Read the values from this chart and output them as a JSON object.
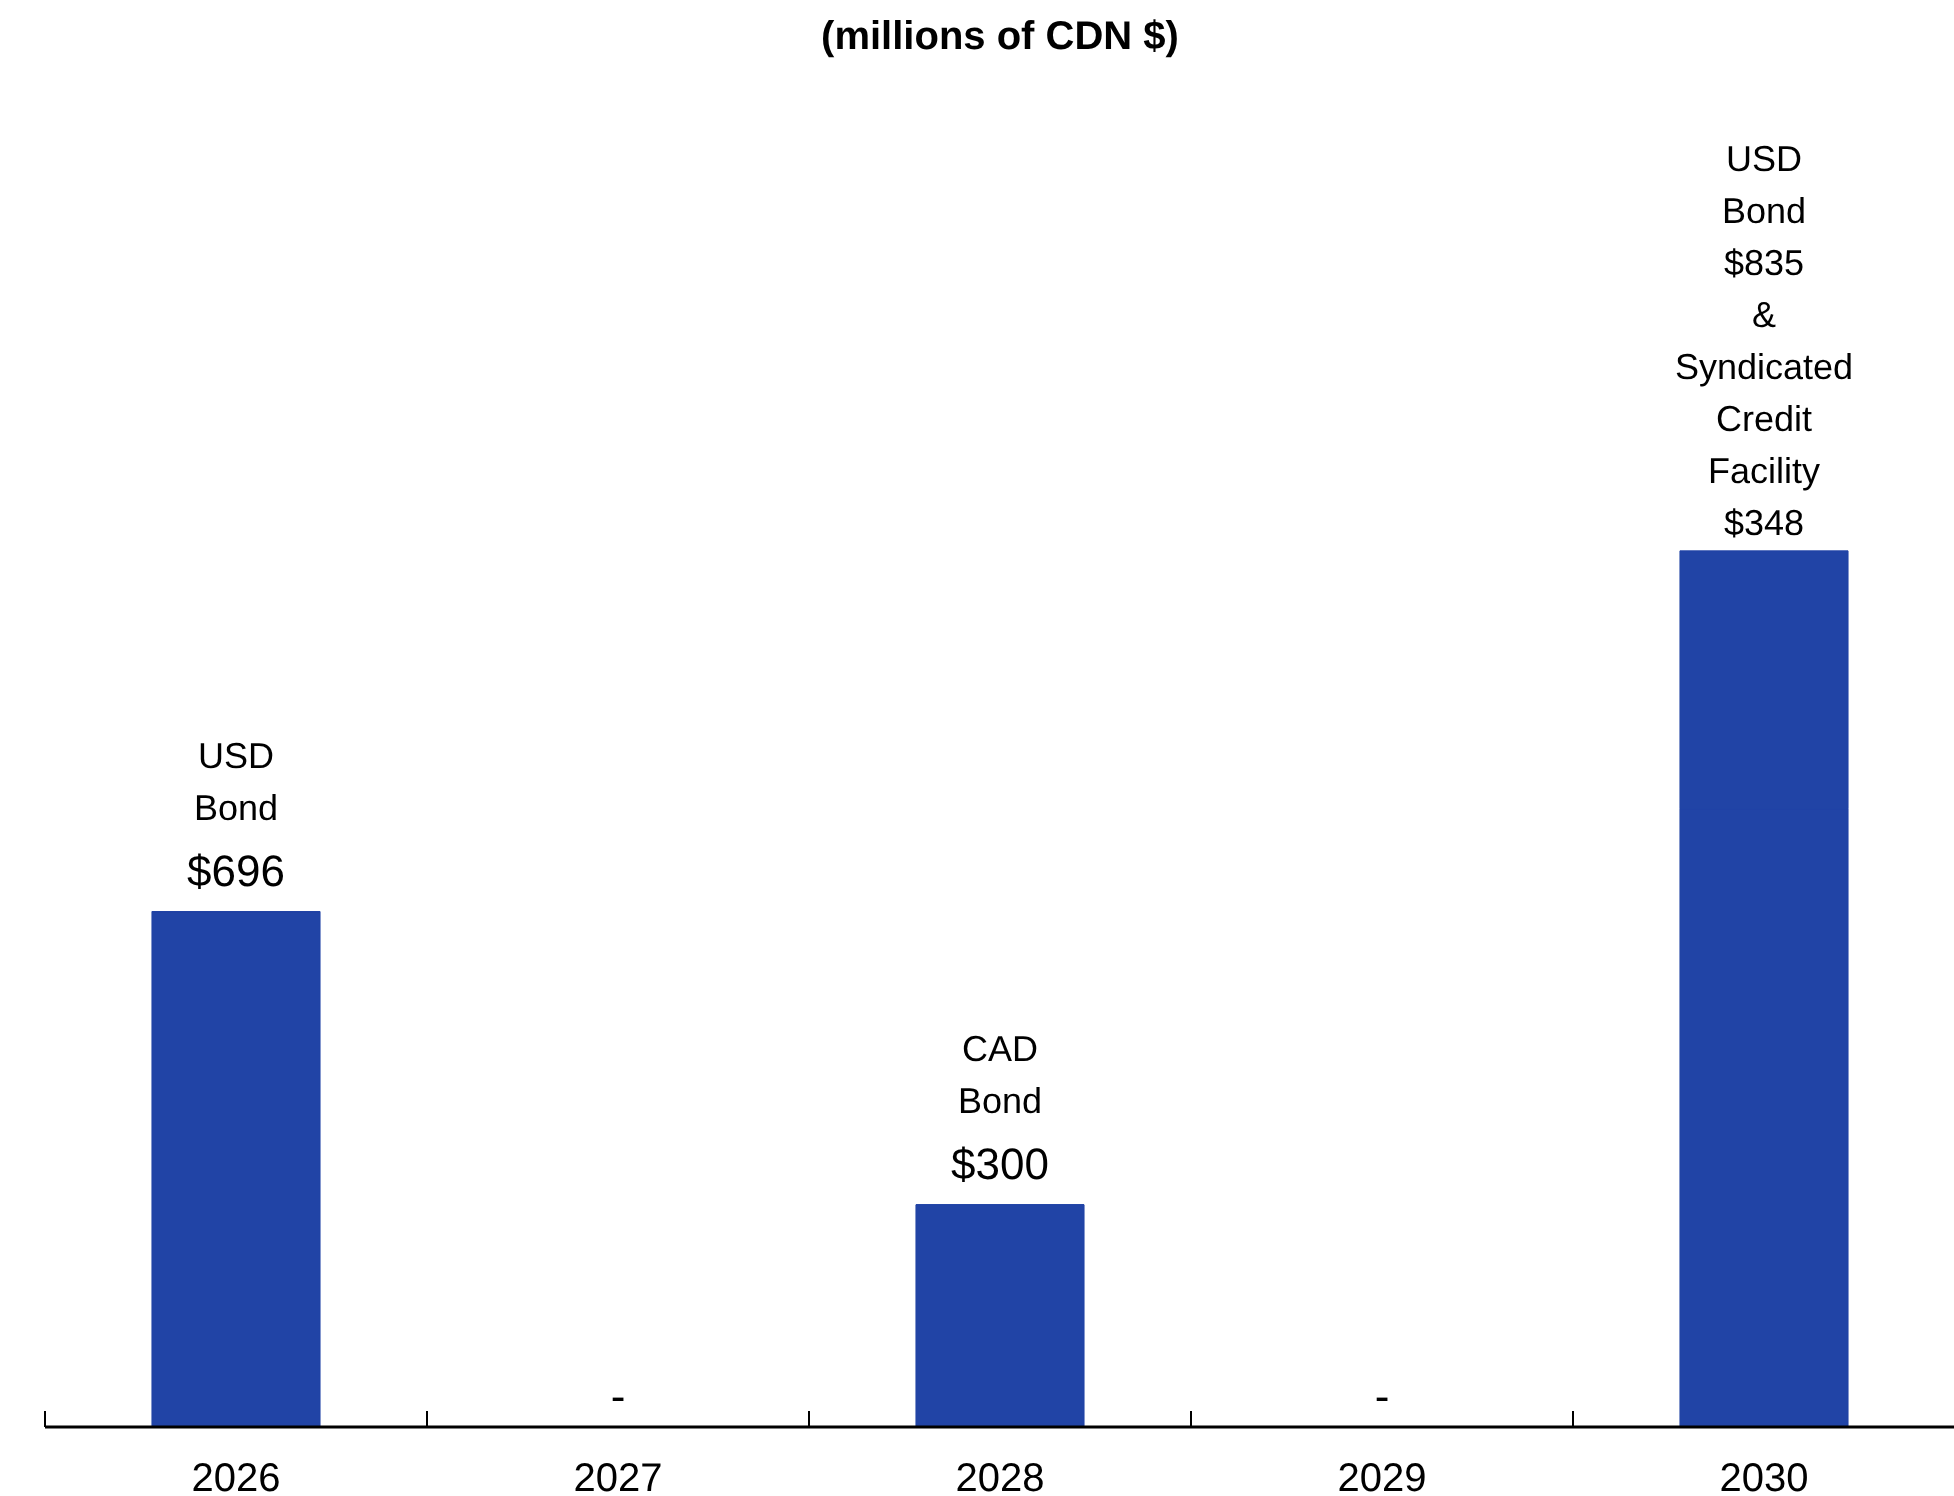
{
  "chart_data": {
    "type": "bar",
    "title": "(millions of CDN $)",
    "categories": [
      "2026",
      "2027",
      "2028",
      "2029",
      "2030"
    ],
    "stacked": true,
    "series": [
      {
        "color": "#2144a6",
        "values": [
          696,
          0,
          300,
          0,
          835
        ],
        "value_labels": [
          "$696",
          "-",
          "$300",
          "-",
          null
        ]
      },
      {
        "color": "#2144a6",
        "values": [
          0,
          0,
          0,
          0,
          348
        ]
      }
    ],
    "annotations": [
      {
        "text": "USD\nBond",
        "x": "2026",
        "y": 696
      },
      {
        "text": "CAD\nBond",
        "x": "2028",
        "y": 300
      },
      {
        "text": "USD\nBond\n$835\n&\nSyndicated\nCredit\nFacility\n$348",
        "x": "2030",
        "y": 1183
      }
    ],
    "grid": false
  }
}
